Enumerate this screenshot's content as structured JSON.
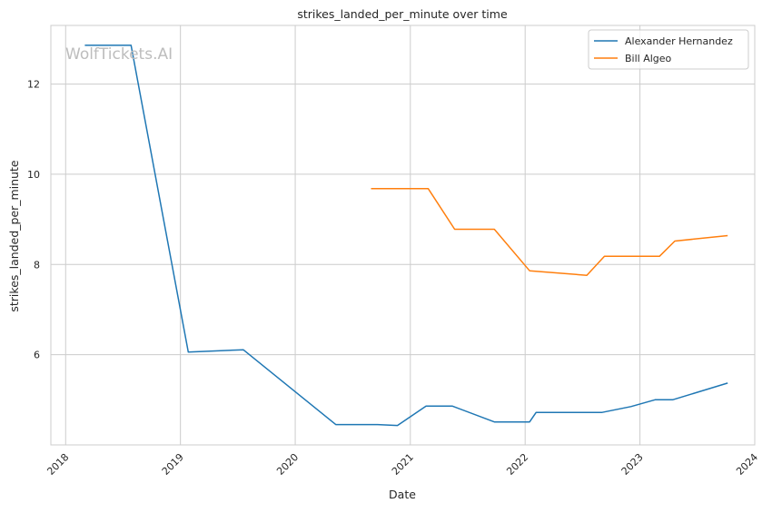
{
  "watermark": "WolfTickets.AI",
  "chart_data": {
    "type": "line",
    "title": "strikes_landed_per_minute over time",
    "xlabel": "Date",
    "ylabel": "strikes_landed_per_minute",
    "x_axis": "date",
    "xlim": [
      "2017-11-15",
      "2024-01-01"
    ],
    "ylim": [
      4.0,
      13.3
    ],
    "x_ticks": [
      "2018-01-01",
      "2019-01-01",
      "2020-01-01",
      "2021-01-01",
      "2022-01-01",
      "2023-01-01",
      "2024-01-01"
    ],
    "x_tick_labels": [
      "2018",
      "2019",
      "2020",
      "2021",
      "2022",
      "2023",
      "2024"
    ],
    "y_ticks": [
      6,
      8,
      10,
      12
    ],
    "y_tick_labels": [
      "6",
      "8",
      "10",
      "12"
    ],
    "grid": true,
    "legend_position": "top-right",
    "series": [
      {
        "name": "Alexander Hernandez",
        "color": "#1f77b4",
        "points": [
          [
            "2018-03-03",
            12.86
          ],
          [
            "2018-07-28",
            12.86
          ],
          [
            "2019-01-26",
            6.06
          ],
          [
            "2019-07-20",
            6.11
          ],
          [
            "2020-05-09",
            4.45
          ],
          [
            "2020-09-19",
            4.45
          ],
          [
            "2020-11-21",
            4.43
          ],
          [
            "2021-02-20",
            4.86
          ],
          [
            "2021-05-15",
            4.86
          ],
          [
            "2021-09-25",
            4.51
          ],
          [
            "2022-01-15",
            4.51
          ],
          [
            "2022-02-05",
            4.72
          ],
          [
            "2022-09-03",
            4.72
          ],
          [
            "2022-12-03",
            4.85
          ],
          [
            "2023-02-18",
            5.0
          ],
          [
            "2023-04-15",
            5.0
          ],
          [
            "2023-10-07",
            5.37
          ]
        ]
      },
      {
        "name": "Bill Algeo",
        "color": "#ff7f0e",
        "points": [
          [
            "2020-08-29",
            9.68
          ],
          [
            "2021-02-27",
            9.68
          ],
          [
            "2021-05-22",
            8.78
          ],
          [
            "2021-09-25",
            8.78
          ],
          [
            "2022-01-15",
            7.86
          ],
          [
            "2022-07-16",
            7.76
          ],
          [
            "2022-09-10",
            8.18
          ],
          [
            "2023-03-04",
            8.18
          ],
          [
            "2023-04-22",
            8.52
          ],
          [
            "2023-10-07",
            8.64
          ]
        ]
      }
    ]
  }
}
